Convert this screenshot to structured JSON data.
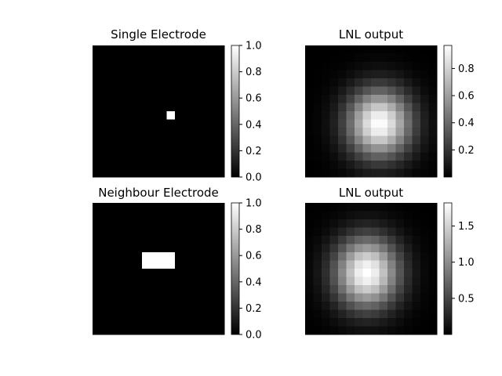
{
  "chart_data": [
    {
      "type": "heatmap",
      "title": "Single Electrode",
      "grid_size": 16,
      "colormap": "gray",
      "grid": "off",
      "pattern": "single_electrode",
      "hot_cells": [
        [
          9,
          8
        ]
      ],
      "vmin": 0.0,
      "vmax": 1.0,
      "colorbar": {
        "min": 0.0,
        "max": 1.0,
        "ticks": [
          0.0,
          0.2,
          0.4,
          0.6,
          0.8,
          1.0
        ],
        "tick_labels": [
          "0.0",
          "0.2",
          "0.4",
          "0.6",
          "0.8",
          "1.0"
        ]
      }
    },
    {
      "type": "heatmap",
      "title": "LNL output",
      "grid_size": 16,
      "colormap": "gray",
      "grid": "off",
      "pattern": "gaussian",
      "center": [
        9,
        8.5
      ],
      "sigma": [
        2.9,
        2.7
      ],
      "vmin": 0.0,
      "vmax": 0.97,
      "colorbar": {
        "min": 0.0,
        "max": 0.97,
        "ticks": [
          0.2,
          0.4,
          0.6,
          0.8
        ],
        "tick_labels": [
          "0.2",
          "0.4",
          "0.6",
          "0.8"
        ]
      }
    },
    {
      "type": "heatmap",
      "title": "Neighbour Electrode",
      "grid_size": 16,
      "colormap": "gray",
      "grid": "off",
      "pattern": "neighbour_electrode",
      "hot_cells": [
        [
          6,
          6
        ],
        [
          7,
          6
        ],
        [
          8,
          6
        ],
        [
          9,
          6
        ],
        [
          6,
          7
        ],
        [
          7,
          7
        ],
        [
          8,
          7
        ],
        [
          9,
          7
        ]
      ],
      "vmin": 0.0,
      "vmax": 1.0,
      "colorbar": {
        "min": 0.0,
        "max": 1.0,
        "ticks": [
          0.0,
          0.2,
          0.4,
          0.6,
          0.8,
          1.0
        ],
        "tick_labels": [
          "0.0",
          "0.2",
          "0.4",
          "0.6",
          "0.8",
          "1.0"
        ]
      }
    },
    {
      "type": "heatmap",
      "title": "LNL output",
      "grid_size": 16,
      "colormap": "gray",
      "grid": "off",
      "pattern": "gaussian",
      "center": [
        8,
        7
      ],
      "sigma": [
        3.0,
        2.7
      ],
      "vmin": 0.0,
      "vmax": 1.82,
      "colorbar": {
        "min": 0.0,
        "max": 1.82,
        "ticks": [
          0.5,
          1.0,
          1.5
        ],
        "tick_labels": [
          "0.5",
          "1.0",
          "1.5"
        ]
      }
    }
  ]
}
